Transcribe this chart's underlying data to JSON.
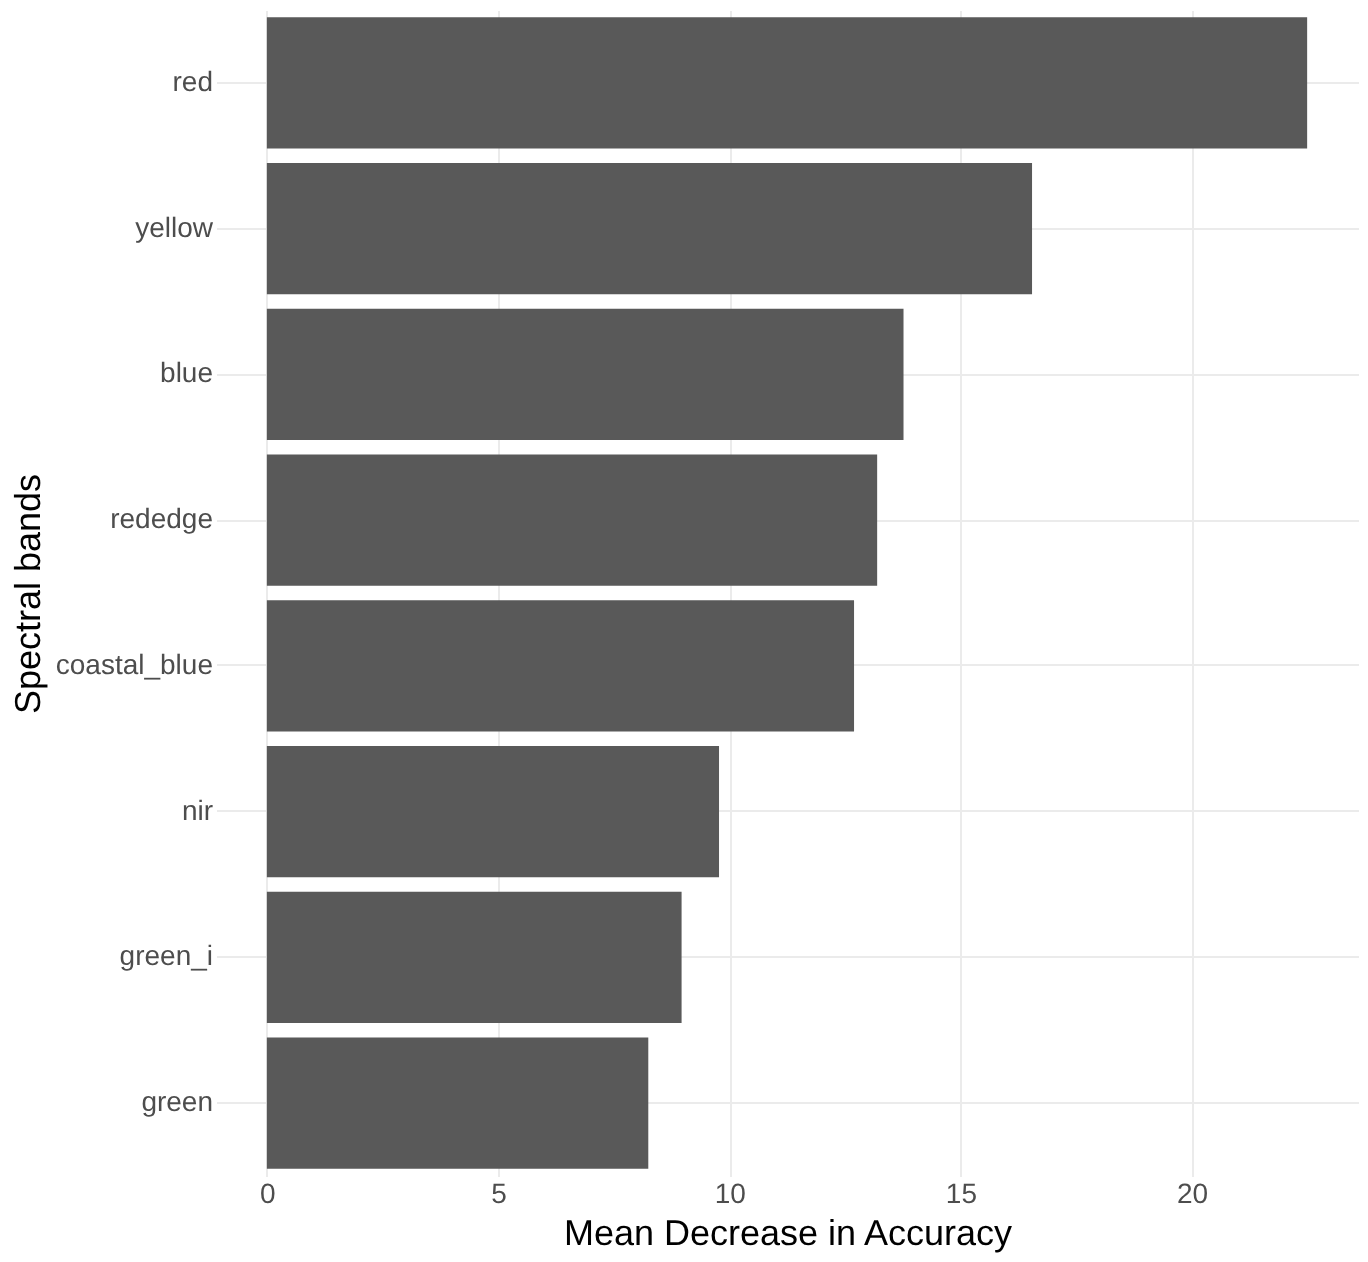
{
  "chart_data": {
    "type": "bar",
    "orientation": "horizontal",
    "xlabel": "Mean Decrease in Accuracy",
    "ylabel": "Spectral bands",
    "categories": [
      "red",
      "yellow",
      "blue",
      "rededge",
      "coastal_blue",
      "nir",
      "green_i",
      "green"
    ],
    "values": [
      22.5,
      16.55,
      13.77,
      13.2,
      12.7,
      9.78,
      8.97,
      8.25
    ],
    "color": "#595959",
    "xlim": [
      -1.1,
      23.6
    ],
    "xticks": [
      0,
      5,
      10,
      15,
      20
    ],
    "grid": true
  }
}
